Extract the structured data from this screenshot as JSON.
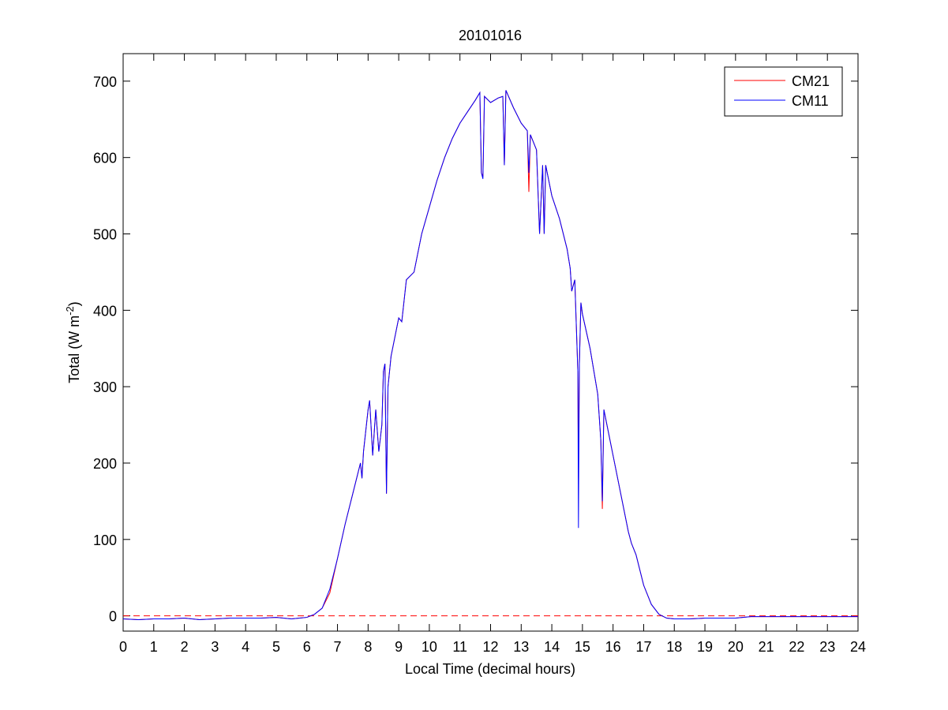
{
  "chart_data": {
    "type": "line",
    "title": "20101016",
    "xlabel": "Local Time (decimal hours)",
    "ylabel": [
      "Total (W m",
      "-2",
      ")"
    ],
    "x": [
      0,
      0.5,
      1,
      1.5,
      2,
      2.5,
      3,
      3.5,
      4,
      4.5,
      5,
      5.5,
      6,
      6.25,
      6.5,
      6.75,
      7,
      7.25,
      7.5,
      7.75,
      7.8,
      7.85,
      8,
      8.05,
      8.15,
      8.25,
      8.35,
      8.45,
      8.5,
      8.55,
      8.6,
      8.65,
      8.75,
      9,
      9.1,
      9.25,
      9.5,
      9.75,
      10,
      10.25,
      10.5,
      10.75,
      11,
      11.25,
      11.5,
      11.65,
      11.7,
      11.75,
      11.8,
      12,
      12.25,
      12.4,
      12.45,
      12.5,
      12.75,
      13,
      13.2,
      13.25,
      13.3,
      13.5,
      13.6,
      13.7,
      13.75,
      13.8,
      14,
      14.25,
      14.5,
      14.6,
      14.65,
      14.75,
      14.85,
      14.87,
      14.9,
      14.95,
      15,
      15.25,
      15.5,
      15.6,
      15.65,
      15.7,
      15.75,
      16,
      16.25,
      16.5,
      16.6,
      16.75,
      17,
      17.25,
      17.5,
      17.75,
      18,
      18.5,
      19,
      19.5,
      20,
      20.5,
      21,
      22,
      23,
      24
    ],
    "series": [
      {
        "name": "CM21",
        "color": "#ff0000",
        "values": [
          -4,
          -5,
          -4,
          -4,
          -3,
          -5,
          -4,
          -3,
          -3,
          -3,
          -2,
          -4,
          -2,
          2,
          10,
          30,
          75,
          120,
          160,
          200,
          180,
          215,
          270,
          282,
          210,
          270,
          215,
          250,
          320,
          330,
          160,
          300,
          340,
          390,
          385,
          440,
          450,
          500,
          535,
          570,
          600,
          625,
          645,
          660,
          675,
          685,
          580,
          575,
          680,
          672,
          678,
          680,
          590,
          688,
          665,
          645,
          635,
          555,
          630,
          610,
          500,
          590,
          500,
          590,
          550,
          520,
          480,
          455,
          425,
          440,
          320,
          180,
          330,
          410,
          395,
          350,
          290,
          230,
          140,
          270,
          260,
          210,
          160,
          110,
          95,
          80,
          40,
          15,
          2,
          -3,
          -4,
          -4,
          -3,
          -3,
          -3,
          -1,
          -1,
          -1,
          -1,
          -1
        ]
      },
      {
        "name": "CM11",
        "color": "#0000ff",
        "values": [
          -4,
          -5,
          -4,
          -4,
          -3,
          -5,
          -4,
          -3,
          -3,
          -3,
          -2,
          -4,
          -2,
          2,
          10,
          35,
          75,
          120,
          160,
          200,
          180,
          215,
          270,
          282,
          210,
          270,
          215,
          250,
          320,
          330,
          160,
          300,
          340,
          390,
          385,
          440,
          450,
          500,
          535,
          570,
          600,
          625,
          645,
          660,
          675,
          685,
          580,
          572,
          680,
          672,
          678,
          680,
          590,
          688,
          665,
          645,
          635,
          580,
          630,
          610,
          500,
          590,
          500,
          590,
          550,
          520,
          480,
          455,
          425,
          440,
          320,
          115,
          330,
          410,
          395,
          350,
          290,
          230,
          150,
          270,
          260,
          210,
          160,
          110,
          95,
          80,
          40,
          15,
          2,
          -3,
          -4,
          -4,
          -3,
          -3,
          -3,
          -1,
          -1,
          -1,
          -1,
          -1
        ]
      }
    ],
    "reference_line": {
      "y": 0,
      "color": "#ff0000",
      "style": "dashed"
    },
    "xlim": [
      0,
      24
    ],
    "xticks": [
      0,
      1,
      2,
      3,
      4,
      5,
      6,
      7,
      8,
      9,
      10,
      11,
      12,
      13,
      14,
      15,
      16,
      17,
      18,
      19,
      20,
      21,
      22,
      23,
      24
    ],
    "ylim": [
      -20,
      736
    ],
    "yticks": [
      0,
      100,
      200,
      300,
      400,
      500,
      600,
      700
    ],
    "legend": "northeast"
  }
}
